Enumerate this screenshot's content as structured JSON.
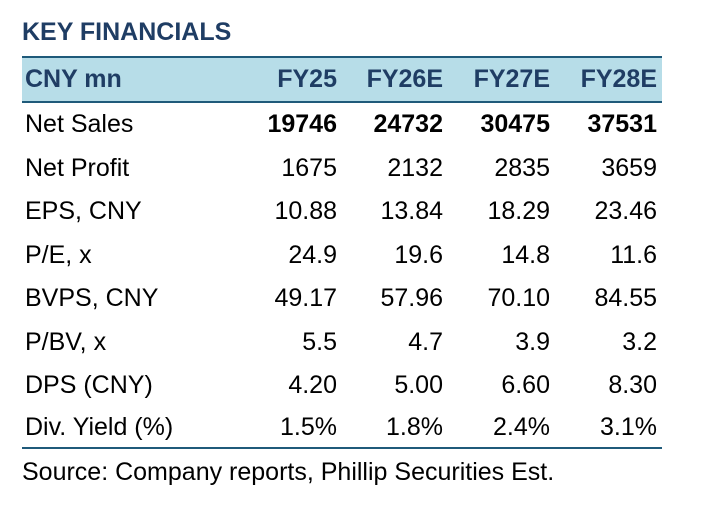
{
  "title": "KEY FINANCIALS",
  "table": {
    "header": {
      "label": "CNY mn",
      "columns": [
        "FY25",
        "FY26E",
        "FY27E",
        "FY28E"
      ]
    },
    "rows": [
      {
        "label": "Net Sales",
        "values": [
          "19746",
          "24732",
          "30475",
          "37531"
        ]
      },
      {
        "label": "Net Profit",
        "values": [
          "1675",
          "2132",
          "2835",
          "3659"
        ]
      },
      {
        "label": "EPS, CNY",
        "values": [
          "10.88",
          "13.84",
          "18.29",
          "23.46"
        ]
      },
      {
        "label": "P/E, x",
        "values": [
          "24.9",
          "19.6",
          "14.8",
          "11.6"
        ]
      },
      {
        "label": "BVPS, CNY",
        "values": [
          "49.17",
          "57.96",
          "70.10",
          "84.55"
        ]
      },
      {
        "label": "P/BV, x",
        "values": [
          "5.5",
          "4.7",
          "3.9",
          "3.2"
        ]
      },
      {
        "label": "DPS (CNY)",
        "values": [
          "4.20",
          "5.00",
          "6.60",
          "8.30"
        ]
      },
      {
        "label": "Div. Yield (%)",
        "values": [
          "1.5%",
          "1.8%",
          "2.4%",
          "3.1%"
        ]
      }
    ]
  },
  "source": "Source: Company reports, Phillip Securities Est.",
  "colors": {
    "title": "#1f3d64",
    "header_bg": "#b7dde8",
    "rule": "#1f5a7a"
  }
}
